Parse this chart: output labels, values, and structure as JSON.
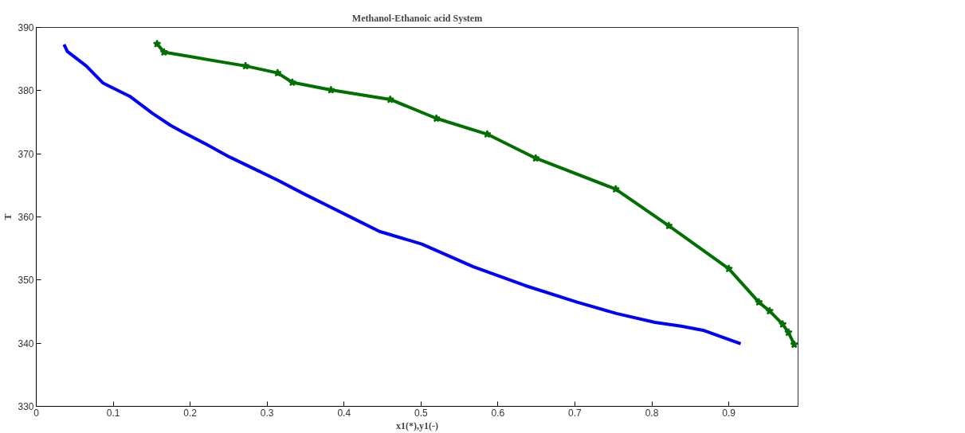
{
  "chart_data": {
    "type": "line",
    "title": "Methanol-Ethanoic acid System",
    "xlabel": "x1(*),y1(-)",
    "ylabel": "T",
    "xlim": [
      0,
      0.99
    ],
    "ylim": [
      330,
      390
    ],
    "xticks": [
      0,
      0.1,
      0.2,
      0.3,
      0.4,
      0.5,
      0.6,
      0.7,
      0.8,
      0.9
    ],
    "yticks": [
      330,
      340,
      350,
      360,
      370,
      380,
      390
    ],
    "grid": false,
    "series": [
      {
        "color": "#0000ff",
        "marker": "none",
        "x": [
          0.0361,
          0.0404,
          0.065,
          0.0868,
          0.0917,
          0.1215,
          0.151,
          0.1745,
          0.191,
          0.221,
          0.251,
          0.28,
          0.314,
          0.347,
          0.38,
          0.413,
          0.446,
          0.501,
          0.568,
          0.636,
          0.703,
          0.754,
          0.804,
          0.838,
          0.868,
          0.9155
        ],
        "values": [
          387.3,
          386.2,
          383.9,
          381.2,
          380.9,
          379.1,
          376.4,
          374.5,
          373.4,
          371.5,
          369.5,
          367.8,
          365.8,
          363.7,
          361.7,
          359.7,
          357.7,
          355.7,
          352.1,
          349.1,
          346.5,
          344.7,
          343.3,
          342.7,
          342.0,
          339.9
        ]
      },
      {
        "color": "#007000",
        "marker": "star",
        "x": [
          0.157,
          0.166,
          0.272,
          0.3136,
          0.3328,
          0.383,
          0.46,
          0.52,
          0.586,
          0.649,
          0.753,
          0.822,
          0.9,
          0.939,
          0.953,
          0.97,
          0.9775,
          0.985
        ],
        "values": [
          387.4,
          386.1,
          383.9,
          382.8,
          381.3,
          380.1,
          378.6,
          375.6,
          373.1,
          369.3,
          364.4,
          358.6,
          351.8,
          346.5,
          345.1,
          343.0,
          341.7,
          339.8
        ]
      }
    ]
  }
}
